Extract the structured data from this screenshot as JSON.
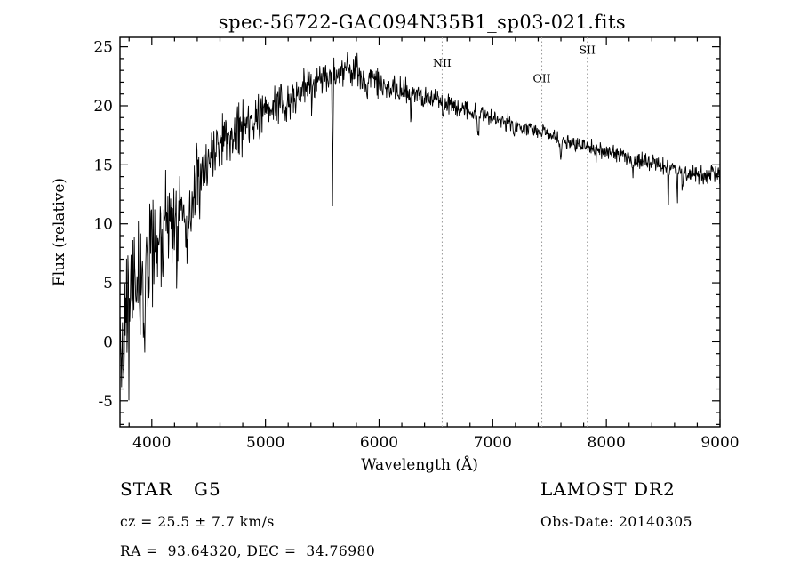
{
  "page": {
    "background": "#ffffff"
  },
  "title": "spec-56722-GAC094N35B1_sp03-021.fits",
  "annotations": {
    "object_class": "STAR",
    "subclass": "G5",
    "survey": "LAMOST DR2",
    "cz": "cz = 25.5 ± 7.7 km/s",
    "obs_date": "Obs-Date: 20140305",
    "coords": "RA =  93.64320, DEC =  34.76980"
  },
  "chart_data": {
    "type": "line",
    "title": "spec-56722-GAC094N35B1_sp03-021.fits",
    "xlabel": "Wavelength (Å)",
    "ylabel": "Flux (relative)",
    "xlim": [
      3720,
      9000
    ],
    "ylim": [
      -7.2,
      25.8
    ],
    "x_ticks": [
      4000,
      5000,
      6000,
      7000,
      8000,
      9000
    ],
    "y_ticks": [
      -5,
      0,
      5,
      10,
      15,
      20,
      25
    ],
    "x_minor_step": 200,
    "y_minor_step": 1,
    "grid": false,
    "line_color": "#000000",
    "marker_line_color": "#9a9a9a",
    "line_markers": [
      {
        "label": "NII",
        "wavelength": 6555,
        "label_flux": 23.3
      },
      {
        "label": "OII",
        "wavelength": 7432,
        "label_flux": 22.0
      },
      {
        "label": "SII",
        "wavelength": 7832,
        "label_flux": 24.4
      }
    ],
    "continuum": [
      [
        3720,
        2.0
      ],
      [
        3800,
        3.0
      ],
      [
        3900,
        5.5
      ],
      [
        4000,
        8.0
      ],
      [
        4150,
        10.0
      ],
      [
        4300,
        11.5
      ],
      [
        4450,
        14.0
      ],
      [
        4600,
        17.0
      ],
      [
        4800,
        18.3
      ],
      [
        5000,
        19.5
      ],
      [
        5200,
        20.5
      ],
      [
        5400,
        22.0
      ],
      [
        5600,
        22.8
      ],
      [
        5750,
        23.2
      ],
      [
        5900,
        22.3
      ],
      [
        6100,
        21.6
      ],
      [
        6400,
        20.8
      ],
      [
        6700,
        19.9
      ],
      [
        7000,
        19.0
      ],
      [
        7300,
        18.1
      ],
      [
        7600,
        17.2
      ],
      [
        7900,
        16.4
      ],
      [
        8200,
        15.6
      ],
      [
        8500,
        14.9
      ],
      [
        8800,
        14.2
      ],
      [
        9000,
        14.2
      ]
    ],
    "noise_amplitude": [
      [
        3720,
        4.2
      ],
      [
        3850,
        3.8
      ],
      [
        4000,
        3.2
      ],
      [
        4200,
        2.7
      ],
      [
        4400,
        2.2
      ],
      [
        4600,
        1.7
      ],
      [
        4800,
        1.4
      ],
      [
        5000,
        1.3
      ],
      [
        5200,
        1.1
      ],
      [
        5500,
        1.0
      ],
      [
        5800,
        0.95
      ],
      [
        6100,
        0.75
      ],
      [
        6400,
        0.6
      ],
      [
        6700,
        0.55
      ],
      [
        7000,
        0.5
      ],
      [
        7500,
        0.45
      ],
      [
        8000,
        0.45
      ],
      [
        8500,
        0.5
      ],
      [
        9000,
        0.55
      ]
    ],
    "absorption_features": [
      {
        "wavelength": 3735,
        "depth": 4.0,
        "sigma": 6
      },
      {
        "wavelength": 3933,
        "depth": 5.0,
        "sigma": 7
      },
      {
        "wavelength": 3968,
        "depth": 4.0,
        "sigma": 6
      },
      {
        "wavelength": 4102,
        "depth": 3.0,
        "sigma": 6
      },
      {
        "wavelength": 4227,
        "depth": 3.0,
        "sigma": 5
      },
      {
        "wavelength": 4305,
        "depth": 4.5,
        "sigma": 9
      },
      {
        "wavelength": 4340,
        "depth": 2.5,
        "sigma": 5
      },
      {
        "wavelength": 4861,
        "depth": 2.2,
        "sigma": 6
      },
      {
        "wavelength": 5180,
        "depth": 1.5,
        "sigma": 8
      },
      {
        "wavelength": 5590,
        "depth": 11.5,
        "sigma": 3
      },
      {
        "wavelength": 5890,
        "depth": 2.0,
        "sigma": 6
      },
      {
        "wavelength": 6280,
        "depth": 3.0,
        "sigma": 3
      },
      {
        "wavelength": 6563,
        "depth": 1.5,
        "sigma": 5
      },
      {
        "wavelength": 6870,
        "depth": 1.5,
        "sigma": 8
      },
      {
        "wavelength": 7190,
        "depth": 1.0,
        "sigma": 8
      },
      {
        "wavelength": 7600,
        "depth": 1.5,
        "sigma": 10
      },
      {
        "wavelength": 8230,
        "depth": 1.5,
        "sigma": 6
      },
      {
        "wavelength": 8545,
        "depth": 3.5,
        "sigma": 3
      },
      {
        "wavelength": 8625,
        "depth": 3.0,
        "sigma": 3
      },
      {
        "wavelength": 8670,
        "depth": 2.0,
        "sigma": 4
      }
    ],
    "noise_seed": 42,
    "sample_step": 4
  }
}
